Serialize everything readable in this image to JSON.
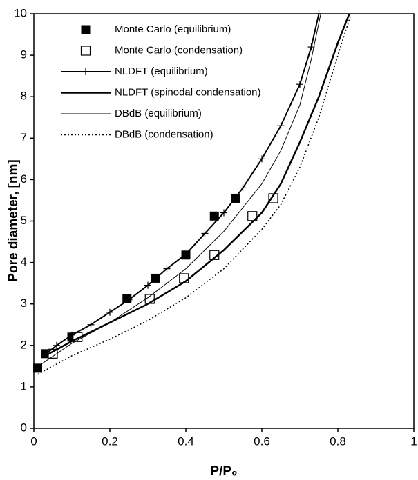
{
  "chart_data": {
    "type": "line",
    "x_label": "P/P₀",
    "y_label": "Pore diameter, [nm]",
    "xlim": [
      0,
      1
    ],
    "xticks": [
      0,
      0.2,
      0.4,
      0.6,
      0.8,
      1
    ],
    "ylim": [
      0,
      10
    ],
    "yticks": [
      0,
      1,
      2,
      3,
      4,
      5,
      6,
      7,
      8,
      9,
      10
    ],
    "series": [
      {
        "name": "Monte Carlo (equilibrium)",
        "color": "#000000",
        "marker": "filled-square",
        "line": "none",
        "x": [
          0.01,
          0.03,
          0.1,
          0.245,
          0.32,
          0.4,
          0.475,
          0.53
        ],
        "values": [
          1.45,
          1.8,
          2.2,
          3.12,
          3.62,
          4.18,
          5.12,
          5.55
        ]
      },
      {
        "name": "Monte Carlo (condensation)",
        "color": "#000000",
        "marker": "open-square",
        "line": "none",
        "x": [
          0.05,
          0.115,
          0.305,
          0.395,
          0.475,
          0.575,
          0.63
        ],
        "values": [
          1.8,
          2.2,
          3.12,
          3.62,
          4.18,
          5.12,
          5.55
        ]
      },
      {
        "name": "NLDFT (equilibrium)",
        "color": "#000000",
        "marker": "plus",
        "line": "solid",
        "width": 2,
        "x": [
          0.03,
          0.06,
          0.1,
          0.15,
          0.2,
          0.25,
          0.3,
          0.35,
          0.4,
          0.45,
          0.5,
          0.55,
          0.6,
          0.65,
          0.7,
          0.73,
          0.75
        ],
        "values": [
          1.78,
          2.0,
          2.25,
          2.5,
          2.8,
          3.1,
          3.45,
          3.85,
          4.2,
          4.7,
          5.2,
          5.8,
          6.5,
          7.3,
          8.3,
          9.2,
          10
        ]
      },
      {
        "name": "NLDFT (spinodal condensation)",
        "color": "#000000",
        "marker": "none",
        "line": "solid",
        "width": 2.5,
        "x": [
          0.03,
          0.1,
          0.2,
          0.3,
          0.4,
          0.5,
          0.6,
          0.65,
          0.7,
          0.75,
          0.8,
          0.83
        ],
        "values": [
          1.75,
          2.1,
          2.55,
          3.0,
          3.55,
          4.3,
          5.2,
          5.9,
          6.9,
          8.0,
          9.3,
          10
        ]
      },
      {
        "name": "DBdB (equilibrium)",
        "color": "#000000",
        "marker": "none",
        "line": "solid",
        "width": 1,
        "x": [
          0.02,
          0.1,
          0.2,
          0.3,
          0.4,
          0.5,
          0.6,
          0.65,
          0.7,
          0.73,
          0.755
        ],
        "values": [
          1.55,
          2.05,
          2.55,
          3.15,
          3.85,
          4.75,
          5.9,
          6.7,
          7.8,
          8.9,
          10
        ]
      },
      {
        "name": "DBdB (condensation)",
        "color": "#000000",
        "marker": "none",
        "line": "dotted",
        "width": 1.5,
        "x": [
          0.01,
          0.1,
          0.2,
          0.3,
          0.4,
          0.5,
          0.6,
          0.65,
          0.7,
          0.75,
          0.8,
          0.835
        ],
        "values": [
          1.3,
          1.75,
          2.15,
          2.6,
          3.15,
          3.85,
          4.8,
          5.4,
          6.3,
          7.5,
          9.0,
          10
        ]
      }
    ]
  }
}
